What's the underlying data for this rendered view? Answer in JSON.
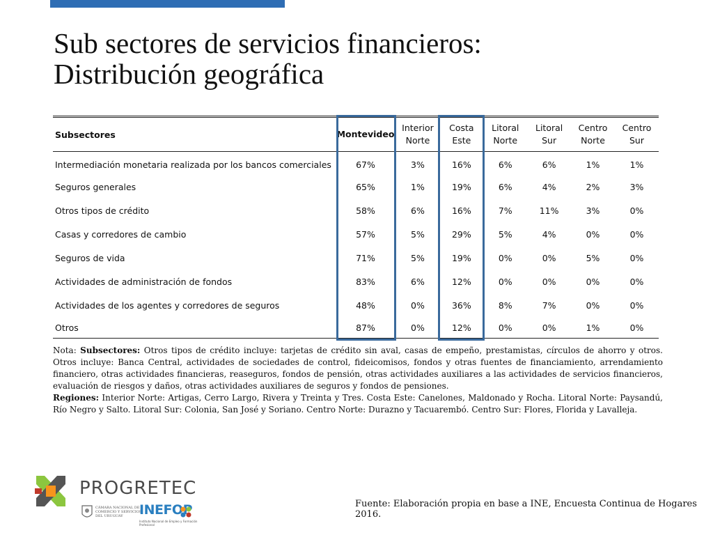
{
  "title": {
    "line1": "Sub sectores de servicios financieros:",
    "line2": "Distribución geográfica"
  },
  "table": {
    "headers": {
      "subsectores": "Subsectores",
      "montevideo": "Montevideo",
      "interior_norte": [
        "Interior",
        "Norte"
      ],
      "costa_este": [
        "Costa",
        "Este"
      ],
      "litoral_norte": [
        "Litoral",
        "Norte"
      ],
      "litoral_sur": [
        "Litoral",
        "Sur"
      ],
      "centro_norte": [
        "Centro",
        "Norte"
      ],
      "centro_sur": [
        "Centro",
        "Sur"
      ]
    },
    "rows": [
      {
        "name": "Intermediación monetaria realizada por los bancos comerciales",
        "values": [
          "67%",
          "3%",
          "16%",
          "6%",
          "6%",
          "1%",
          "1%"
        ]
      },
      {
        "name": "Seguros generales",
        "values": [
          "65%",
          "1%",
          "19%",
          "6%",
          "4%",
          "2%",
          "3%"
        ]
      },
      {
        "name": "Otros tipos de crédito",
        "values": [
          "58%",
          "6%",
          "16%",
          "7%",
          "11%",
          "3%",
          "0%"
        ]
      },
      {
        "name": "Casas y corredores de cambio",
        "values": [
          "57%",
          "5%",
          "29%",
          "5%",
          "4%",
          "0%",
          "0%"
        ]
      },
      {
        "name": "Seguros de vida",
        "values": [
          "71%",
          "5%",
          "19%",
          "0%",
          "0%",
          "5%",
          "0%"
        ]
      },
      {
        "name": "Actividades de administración de fondos",
        "values": [
          "83%",
          "6%",
          "12%",
          "0%",
          "0%",
          "0%",
          "0%"
        ]
      },
      {
        "name": "Actividades de los agentes y corredores de seguros",
        "values": [
          "48%",
          "0%",
          "36%",
          "8%",
          "7%",
          "0%",
          "0%"
        ]
      },
      {
        "name": "Otros",
        "values": [
          "87%",
          "0%",
          "12%",
          "0%",
          "0%",
          "1%",
          "0%"
        ]
      }
    ],
    "highlight_color": "#3a6a9c"
  },
  "notes": {
    "prefix": "Nota: ",
    "subsectores_label": "Subsectores:",
    "subsectores_text": " Otros tipos de crédito incluye: tarjetas de crédito sin aval, casas de empeño, prestamistas, círculos de ahorro y otros. Otros incluye: Banca Central, actividades de sociedades de control, fideicomisos, fondos y otras fuentes de financiamiento, arrendamiento financiero, otras actividades financieras, reaseguros, fondos de pensión, otras actividades auxiliares a las actividades de servicios financieros, evaluación de riesgos y daños, otras actividades auxiliares de seguros y fondos de pensiones.",
    "regiones_label": "Regiones:",
    "regiones_text": " Interior Norte: Artigas, Cerro Largo, Rivera y Treinta y Tres. Costa Este: Canelones, Maldonado y Rocha. Litoral Norte: Paysandú, Río Negro y Salto. Litoral Sur: Colonia, San José y Soriano. Centro Norte: Durazno y Tacuarembó. Centro Sur: Flores, Florida y Lavalleja."
  },
  "footer": {
    "brand": "PROGRETEC",
    "camara": "Cámara Nacional de Comercio y Servicios del Uruguay",
    "inefop": "INEFOP",
    "inefop_sub": "Instituto Nacional de Empleo y Formación Profesional",
    "source": "Fuente: Elaboración propia en base a INE, Encuesta Continua de Hogares 2016."
  },
  "colors": {
    "accent_bar": "#2e6db4",
    "logo_green": "#8cc63f",
    "logo_orange": "#f7941d",
    "logo_dark": "#555555",
    "inefop_blue": "#2a7fc0"
  },
  "icons": [
    "progretec-logo-icon",
    "camara-seal-icon",
    "inefop-logo-icon"
  ]
}
